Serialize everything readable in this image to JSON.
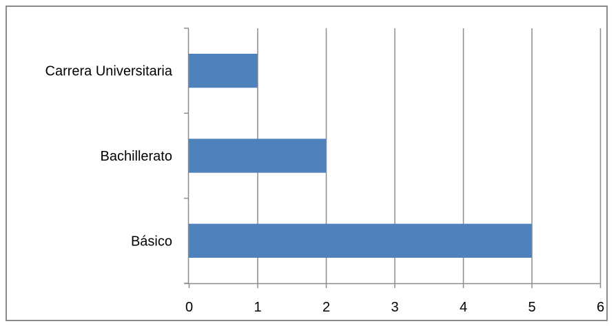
{
  "chart_data": {
    "type": "bar",
    "orientation": "horizontal",
    "categories": [
      "Carrera Universitaria",
      "Bachillerato",
      "Básico"
    ],
    "values": [
      1,
      2,
      5
    ],
    "xlim": [
      0,
      6
    ],
    "x_ticks": [
      0,
      1,
      2,
      3,
      4,
      5,
      6
    ],
    "grid": true,
    "legend": "none",
    "colors": {
      "bar": "#4f81bd",
      "grid": "#8c8c8c",
      "axis": "#8c8c8c",
      "frame": "#8a8a8a"
    }
  }
}
